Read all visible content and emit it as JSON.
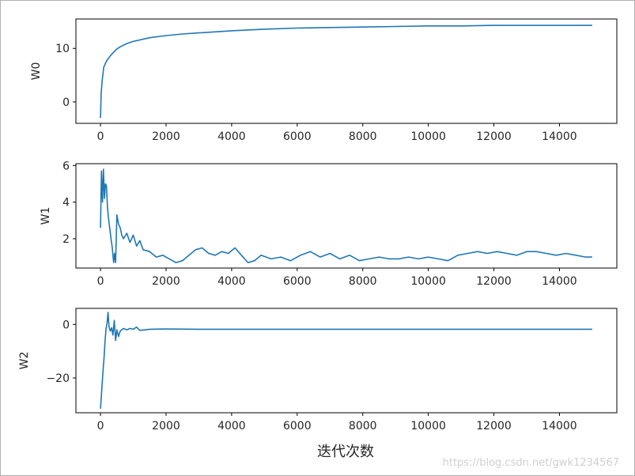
{
  "watermark": "https://blog.csdn.net/gwk1234567",
  "chart_data": [
    {
      "type": "line",
      "ylabel": "W0",
      "xlabel": "",
      "xlim": [
        -750,
        15750
      ],
      "ylim": [
        -4,
        15.5
      ],
      "xticks": [
        0,
        2000,
        4000,
        6000,
        8000,
        10000,
        12000,
        14000
      ],
      "yticks": [
        0,
        10
      ],
      "color": "#1f77b4",
      "series": [
        {
          "x": [
            0,
            20,
            50,
            100,
            150,
            200,
            300,
            400,
            500,
            600,
            800,
            1000,
            1500,
            2000,
            2500,
            3000,
            4000,
            5000,
            6000,
            7000,
            8000,
            9000,
            10000,
            11000,
            12000,
            13000,
            14000,
            15000
          ],
          "y": [
            -3.0,
            1.5,
            4.0,
            6.5,
            7.2,
            7.8,
            8.6,
            9.3,
            9.9,
            10.3,
            10.9,
            11.3,
            12.0,
            12.4,
            12.7,
            12.9,
            13.3,
            13.6,
            13.8,
            13.9,
            14.0,
            14.1,
            14.2,
            14.2,
            14.3,
            14.3,
            14.3,
            14.3
          ]
        }
      ]
    },
    {
      "type": "line",
      "ylabel": "W1",
      "xlabel": "",
      "xlim": [
        -750,
        15750
      ],
      "ylim": [
        0.4,
        6.1
      ],
      "xticks": [
        0,
        2000,
        4000,
        6000,
        8000,
        10000,
        12000,
        14000
      ],
      "yticks": [
        2,
        4,
        6
      ],
      "color": "#1f77b4",
      "series": [
        {
          "x": [
            0,
            30,
            60,
            90,
            120,
            150,
            180,
            210,
            240,
            280,
            320,
            360,
            400,
            430,
            460,
            500,
            550,
            600,
            650,
            700,
            800,
            900,
            1000,
            1100,
            1200,
            1300,
            1500,
            1700,
            1900,
            2100,
            2300,
            2500,
            2700,
            2900,
            3100,
            3300,
            3500,
            3700,
            3900,
            4100,
            4300,
            4500,
            4700,
            4900,
            5200,
            5500,
            5800,
            6100,
            6400,
            6700,
            7000,
            7300,
            7600,
            7900,
            8200,
            8500,
            8800,
            9100,
            9400,
            9700,
            10000,
            10300,
            10600,
            10900,
            11200,
            11500,
            11800,
            12100,
            12400,
            12700,
            13000,
            13300,
            13600,
            13900,
            14200,
            14500,
            14800,
            15000
          ],
          "y": [
            2.6,
            5.7,
            4.0,
            5.8,
            4.2,
            5.0,
            4.9,
            3.8,
            3.2,
            2.6,
            2.0,
            1.5,
            0.7,
            1.2,
            0.7,
            3.3,
            2.8,
            2.6,
            2.2,
            2.0,
            2.3,
            1.8,
            2.2,
            1.6,
            1.9,
            1.4,
            1.3,
            1.0,
            1.1,
            0.9,
            0.7,
            0.8,
            1.1,
            1.4,
            1.5,
            1.2,
            1.1,
            1.3,
            1.2,
            1.5,
            1.1,
            0.7,
            0.8,
            1.1,
            0.9,
            1.0,
            0.8,
            1.1,
            1.3,
            1.0,
            1.2,
            0.9,
            1.1,
            0.8,
            0.9,
            1.0,
            0.9,
            0.9,
            1.0,
            0.9,
            1.0,
            0.9,
            0.8,
            1.1,
            1.2,
            1.3,
            1.2,
            1.3,
            1.2,
            1.1,
            1.3,
            1.3,
            1.2,
            1.1,
            1.2,
            1.1,
            1.0,
            1.0
          ]
        }
      ]
    },
    {
      "type": "line",
      "ylabel": "W2",
      "xlabel": "迭代次数",
      "xlim": [
        -750,
        15750
      ],
      "ylim": [
        -33,
        6
      ],
      "xticks": [
        0,
        2000,
        4000,
        6000,
        8000,
        10000,
        12000,
        14000
      ],
      "yticks": [
        -20,
        0
      ],
      "color": "#1f77b4",
      "series": [
        {
          "x": [
            0,
            20,
            50,
            80,
            110,
            140,
            170,
            200,
            230,
            260,
            300,
            340,
            380,
            420,
            460,
            500,
            550,
            600,
            700,
            800,
            900,
            1000,
            1100,
            1200,
            1500,
            2000,
            3000,
            4000,
            5000,
            6000,
            7000,
            8000,
            9000,
            10000,
            11000,
            12000,
            13000,
            14000,
            15000
          ],
          "y": [
            -31.5,
            -28.0,
            -22.0,
            -17.0,
            -12.0,
            -6.0,
            -1.5,
            0.5,
            4.5,
            -1.0,
            -2.5,
            -1.2,
            -4.0,
            1.5,
            -6.0,
            -2.0,
            -4.5,
            -2.5,
            -1.5,
            -2.0,
            -1.5,
            -1.8,
            -1.0,
            -2.2,
            -1.8,
            -1.7,
            -1.8,
            -1.8,
            -1.8,
            -1.8,
            -1.8,
            -1.8,
            -1.8,
            -1.8,
            -1.8,
            -1.8,
            -1.8,
            -1.8,
            -1.8
          ]
        }
      ]
    }
  ]
}
